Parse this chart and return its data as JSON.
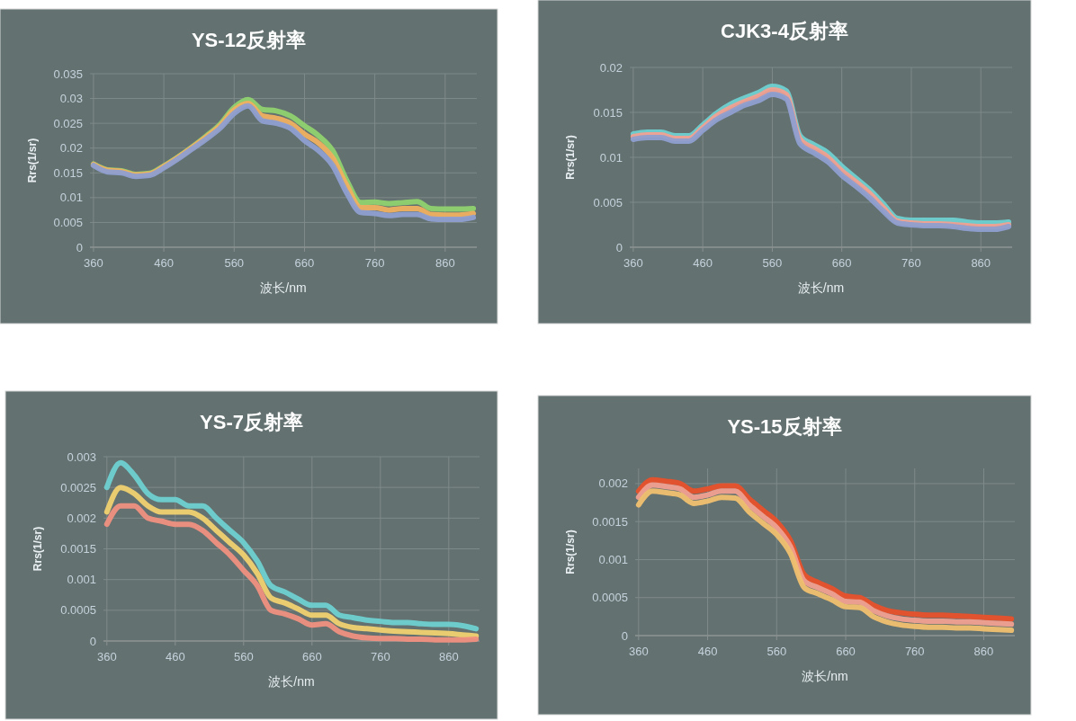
{
  "chart_data": [
    {
      "type": "line",
      "title": "YS-12反射率",
      "xlabel": "波长/nm",
      "ylabel": "Rrs(1/sr)",
      "x": [
        360,
        380,
        400,
        420,
        440,
        460,
        480,
        500,
        520,
        540,
        560,
        580,
        600,
        620,
        640,
        660,
        680,
        700,
        720,
        740,
        760,
        780,
        800,
        820,
        840,
        860,
        880,
        900
      ],
      "xlim": [
        355,
        905
      ],
      "ylim": [
        0,
        0.035
      ],
      "xticks": [
        360,
        460,
        560,
        660,
        760,
        860
      ],
      "yticks": [
        0,
        0.005,
        0.01,
        0.015,
        0.02,
        0.025,
        0.03,
        0.035
      ],
      "grid": true,
      "series": [
        {
          "color": "#8fd16f",
          "values": [
            0.0168,
            0.0156,
            0.0154,
            0.0147,
            0.0149,
            0.0164,
            0.0182,
            0.0202,
            0.0224,
            0.0248,
            0.0282,
            0.0298,
            0.0278,
            0.0275,
            0.0265,
            0.0245,
            0.0225,
            0.0195,
            0.0135,
            0.009,
            0.0091,
            0.0088,
            0.009,
            0.0092,
            0.0078,
            0.0077,
            0.0077,
            0.0078
          ]
        },
        {
          "color": "#f0b060",
          "values": [
            0.0167,
            0.0155,
            0.0153,
            0.0146,
            0.0148,
            0.0163,
            0.0181,
            0.0201,
            0.0222,
            0.0245,
            0.0277,
            0.029,
            0.0265,
            0.026,
            0.025,
            0.0228,
            0.021,
            0.018,
            0.0125,
            0.008,
            0.008,
            0.0075,
            0.0078,
            0.0078,
            0.0066,
            0.0065,
            0.0065,
            0.0068
          ]
        },
        {
          "color": "#8f9fd0",
          "values": [
            0.0165,
            0.0152,
            0.015,
            0.0143,
            0.0145,
            0.016,
            0.0178,
            0.0198,
            0.0218,
            0.024,
            0.027,
            0.0285,
            0.0255,
            0.025,
            0.024,
            0.0215,
            0.0195,
            0.0165,
            0.011,
            0.007,
            0.0068,
            0.0064,
            0.0066,
            0.0066,
            0.0057,
            0.0056,
            0.0056,
            0.006
          ]
        }
      ]
    },
    {
      "type": "line",
      "title": "CJK3-4反射率",
      "xlabel": "波长/nm",
      "ylabel": "Rrs(1/sr)",
      "x": [
        360,
        380,
        400,
        420,
        440,
        460,
        480,
        500,
        520,
        540,
        560,
        580,
        600,
        620,
        640,
        660,
        680,
        700,
        720,
        740,
        760,
        780,
        800,
        820,
        840,
        860,
        880,
        900
      ],
      "xlim": [
        355,
        905
      ],
      "ylim": [
        0,
        0.02
      ],
      "xticks": [
        360,
        460,
        560,
        660,
        760,
        860
      ],
      "yticks": [
        0,
        0.005,
        0.01,
        0.015,
        0.02
      ],
      "grid": true,
      "series": [
        {
          "color": "#6fd0d0",
          "values": [
            0.0126,
            0.0128,
            0.0128,
            0.0124,
            0.0124,
            0.0136,
            0.0149,
            0.0159,
            0.0166,
            0.0172,
            0.0179,
            0.0174,
            0.0124,
            0.0114,
            0.0105,
            0.009,
            0.0077,
            0.0064,
            0.0048,
            0.0032,
            0.003,
            0.003,
            0.003,
            0.003,
            0.0028,
            0.0027,
            0.0027,
            0.0028
          ]
        },
        {
          "color": "#f0a090",
          "values": [
            0.0123,
            0.0125,
            0.0125,
            0.0121,
            0.0121,
            0.0133,
            0.0146,
            0.0155,
            0.0162,
            0.0168,
            0.0175,
            0.017,
            0.012,
            0.011,
            0.01,
            0.0085,
            0.0073,
            0.006,
            0.0044,
            0.0029,
            0.0027,
            0.0026,
            0.0026,
            0.0025,
            0.0024,
            0.0023,
            0.0023,
            0.0025
          ]
        },
        {
          "color": "#8f9fd0",
          "values": [
            0.012,
            0.0122,
            0.0122,
            0.0118,
            0.0118,
            0.013,
            0.0142,
            0.015,
            0.0158,
            0.0163,
            0.017,
            0.0165,
            0.0115,
            0.0105,
            0.0095,
            0.008,
            0.0068,
            0.0055,
            0.004,
            0.0027,
            0.0025,
            0.0024,
            0.0024,
            0.0023,
            0.0021,
            0.002,
            0.002,
            0.0023
          ]
        }
      ]
    },
    {
      "type": "line",
      "title": "YS-7反射率",
      "xlabel": "波长/nm",
      "ylabel": "Rrs(1/sr)",
      "x": [
        360,
        380,
        400,
        420,
        440,
        460,
        480,
        500,
        520,
        540,
        560,
        580,
        600,
        620,
        640,
        660,
        680,
        700,
        720,
        740,
        760,
        780,
        800,
        820,
        840,
        860,
        880,
        900
      ],
      "xlim": [
        355,
        905
      ],
      "ylim": [
        0,
        0.003
      ],
      "xticks": [
        360,
        460,
        560,
        660,
        760,
        860
      ],
      "yticks": [
        0,
        0.0005,
        0.001,
        0.0015,
        0.002,
        0.0025,
        0.003
      ],
      "grid": true,
      "series": [
        {
          "color": "#6fd0d0",
          "values": [
            0.0025,
            0.0029,
            0.0027,
            0.0024,
            0.0023,
            0.0023,
            0.0022,
            0.0022,
            0.002,
            0.0018,
            0.0016,
            0.0013,
            0.0009,
            0.0008,
            0.00068,
            0.00058,
            0.00058,
            0.00042,
            0.00038,
            0.00034,
            0.00032,
            0.0003,
            0.0003,
            0.00028,
            0.00027,
            0.00027,
            0.00025,
            0.0002
          ]
        },
        {
          "color": "#f0d070",
          "values": [
            0.0021,
            0.0025,
            0.0024,
            0.0022,
            0.0021,
            0.0021,
            0.0021,
            0.002,
            0.0018,
            0.0016,
            0.0014,
            0.0011,
            0.0007,
            0.00062,
            0.00052,
            0.00042,
            0.00042,
            0.00028,
            0.00022,
            0.0002,
            0.00018,
            0.00016,
            0.00015,
            0.00014,
            0.00013,
            0.00012,
            0.0001,
            8e-05
          ]
        },
        {
          "color": "#f09080",
          "values": [
            0.0019,
            0.0022,
            0.0022,
            0.002,
            0.00195,
            0.0019,
            0.0019,
            0.0018,
            0.0016,
            0.0014,
            0.00115,
            0.0009,
            0.0005,
            0.00044,
            0.00036,
            0.00026,
            0.00028,
            0.00015,
            8e-05,
            5e-05,
            4e-05,
            4e-05,
            3e-05,
            3e-05,
            2e-05,
            2e-05,
            2e-05,
            3e-05
          ]
        }
      ]
    },
    {
      "type": "line",
      "title": "YS-15反射率",
      "xlabel": "波长/nm",
      "ylabel": "Rrs(1/sr)",
      "x": [
        360,
        380,
        400,
        420,
        440,
        460,
        480,
        500,
        520,
        540,
        560,
        580,
        600,
        620,
        640,
        660,
        680,
        700,
        720,
        740,
        760,
        780,
        800,
        820,
        840,
        860,
        880,
        900
      ],
      "xlim": [
        355,
        905
      ],
      "ylim": [
        0,
        0.0022
      ],
      "xticks": [
        360,
        460,
        560,
        660,
        760,
        860
      ],
      "yticks": [
        0,
        0.0005,
        0.001,
        0.0015,
        0.002
      ],
      "grid": true,
      "series": [
        {
          "color": "#e8502a",
          "values": [
            0.0019,
            0.00205,
            0.00203,
            0.002,
            0.0019,
            0.00193,
            0.00197,
            0.00197,
            0.0018,
            0.00165,
            0.0015,
            0.00125,
            0.0008,
            0.0007,
            0.00062,
            0.00052,
            0.0005,
            0.0004,
            0.00033,
            0.0003,
            0.00028,
            0.00027,
            0.00027,
            0.00026,
            0.00025,
            0.00024,
            0.00023,
            0.00022
          ]
        },
        {
          "color": "#f0a090",
          "values": [
            0.00182,
            0.00198,
            0.00196,
            0.00193,
            0.00182,
            0.00185,
            0.0019,
            0.0019,
            0.00172,
            0.00157,
            0.00142,
            0.00117,
            0.00072,
            0.00063,
            0.00055,
            0.00045,
            0.00044,
            0.00033,
            0.00026,
            0.00022,
            0.0002,
            0.00019,
            0.00019,
            0.00018,
            0.00018,
            0.00017,
            0.00016,
            0.00015
          ]
        },
        {
          "color": "#f0c070",
          "values": [
            0.00172,
            0.0019,
            0.00188,
            0.00185,
            0.00174,
            0.00177,
            0.00182,
            0.00181,
            0.00163,
            0.00148,
            0.00133,
            0.00108,
            0.00063,
            0.00055,
            0.00047,
            0.00038,
            0.00037,
            0.00025,
            0.00018,
            0.00014,
            0.00012,
            0.00011,
            0.00011,
            0.0001,
            0.0001,
            9e-05,
            8e-05,
            7e-05
          ]
        }
      ]
    }
  ]
}
